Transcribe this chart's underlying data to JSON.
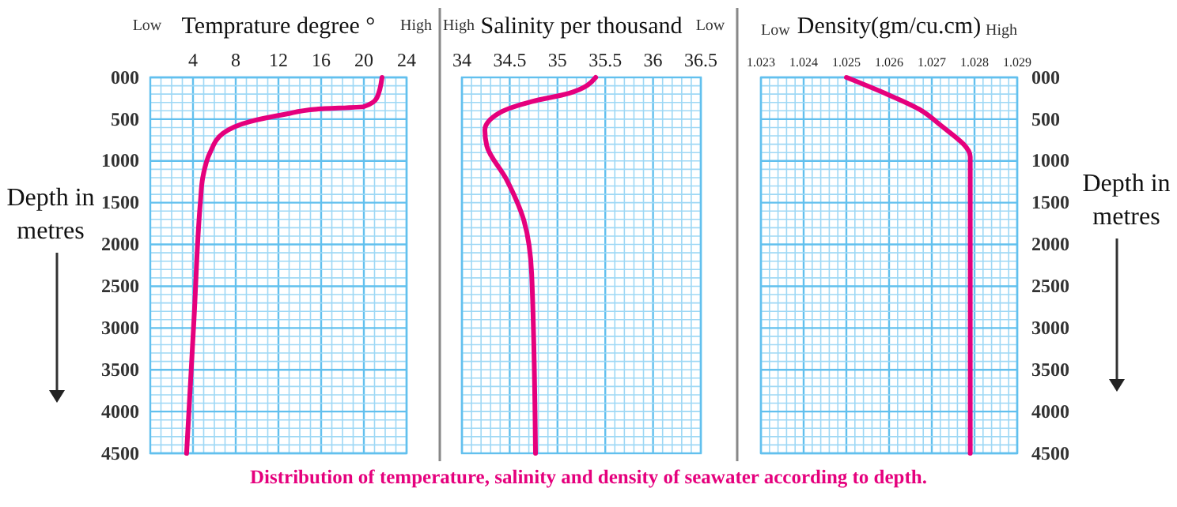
{
  "chart_data": [
    {
      "type": "line",
      "title": "Temprature degree °",
      "ylabel": "Depth in metres",
      "annotations": [
        "Low",
        "High"
      ],
      "xlim": [
        0,
        24
      ],
      "xticks": [
        {
          "value": 1,
          "label": null
        },
        {
          "value": 2,
          "label": null
        },
        {
          "value": 3,
          "label": null
        },
        4,
        {
          "value": 5,
          "label": null
        },
        {
          "value": 6,
          "label": null
        },
        {
          "value": 7,
          "label": null
        },
        8,
        {
          "value": 9,
          "label": null
        },
        {
          "value": 10,
          "label": null
        },
        {
          "value": 11,
          "label": null
        },
        12,
        {
          "value": 13,
          "label": null
        },
        {
          "value": 14,
          "label": null
        },
        {
          "value": 15,
          "label": null
        },
        16,
        {
          "value": 17,
          "label": null
        },
        {
          "value": 18,
          "label": null
        },
        {
          "value": 19,
          "label": null
        },
        20,
        {
          "value": 21,
          "label": null
        },
        {
          "value": 22,
          "label": null
        },
        {
          "value": 23,
          "label": null
        },
        24
      ],
      "ylim": [
        4500,
        0
      ],
      "yticks": [
        {
          "value": 0,
          "label": "000"
        },
        {
          "value": 100,
          "label": null
        },
        {
          "value": 200,
          "label": null
        },
        {
          "value": 300,
          "label": null
        },
        {
          "value": 400,
          "label": null
        },
        500,
        {
          "value": 600,
          "label": null
        },
        {
          "value": 700,
          "label": null
        },
        {
          "value": 800,
          "label": null
        },
        {
          "value": 900,
          "label": null
        },
        1000,
        {
          "value": 1100,
          "label": null
        },
        {
          "value": 1200,
          "label": null
        },
        {
          "value": 1300,
          "label": null
        },
        {
          "value": 1400,
          "label": null
        },
        1500,
        {
          "value": 1600,
          "label": null
        },
        {
          "value": 1700,
          "label": null
        },
        {
          "value": 1800,
          "label": null
        },
        {
          "value": 1900,
          "label": null
        },
        2000,
        {
          "value": 2100,
          "label": null
        },
        {
          "value": 2200,
          "label": null
        },
        {
          "value": 2300,
          "label": null
        },
        {
          "value": 2400,
          "label": null
        },
        2500,
        {
          "value": 2600,
          "label": null
        },
        {
          "value": 2700,
          "label": null
        },
        {
          "value": 2800,
          "label": null
        },
        {
          "value": 2900,
          "label": null
        },
        3000,
        {
          "value": 3100,
          "label": null
        },
        {
          "value": 3200,
          "label": null
        },
        {
          "value": 3300,
          "label": null
        },
        {
          "value": 3400,
          "label": null
        },
        3500,
        {
          "value": 3600,
          "label": null
        },
        {
          "value": 3700,
          "label": null
        },
        {
          "value": 3800,
          "label": null
        },
        {
          "value": 3900,
          "label": null
        },
        4000,
        {
          "value": 4100,
          "label": null
        },
        {
          "value": 4200,
          "label": null
        },
        {
          "value": 4300,
          "label": null
        },
        {
          "value": 4400,
          "label": null
        },
        4500
      ],
      "grid": true,
      "series": [
        {
          "color": "#e5007d",
          "x": [
            21.7,
            21.2,
            20,
            15.6,
            12.7,
            9.3,
            6.8,
            5.6,
            4.9,
            4.7,
            4.1,
            3.4
          ],
          "values": [
            0,
            250,
            350,
            380,
            440,
            530,
            670,
            900,
            1210,
            1480,
            2880,
            4500
          ]
        }
      ]
    },
    {
      "type": "line",
      "title": "Salinity per thousand",
      "annotations": [
        "High",
        "Low",
        "Distribution of temperature, salinity and density of seawater according to depth."
      ],
      "xlim": [
        34,
        36.5
      ],
      "xticks": [
        34,
        {
          "value": 34.1,
          "label": null
        },
        {
          "value": 34.2,
          "label": null
        },
        {
          "value": 34.3,
          "label": null
        },
        {
          "value": 34.4,
          "label": null
        },
        34.5,
        {
          "value": 34.6,
          "label": null
        },
        {
          "value": 34.7,
          "label": null
        },
        {
          "value": 34.8,
          "label": null
        },
        {
          "value": 34.9,
          "label": null
        },
        35,
        {
          "value": 35.1,
          "label": null
        },
        {
          "value": 35.2,
          "label": null
        },
        {
          "value": 35.3,
          "label": null
        },
        {
          "value": 35.4,
          "label": null
        },
        35.5,
        {
          "value": 35.6,
          "label": null
        },
        {
          "value": 35.7,
          "label": null
        },
        {
          "value": 35.8,
          "label": null
        },
        {
          "value": 35.9,
          "label": null
        },
        36,
        {
          "value": 36.1,
          "label": null
        },
        {
          "value": 36.2,
          "label": null
        },
        {
          "value": 36.3,
          "label": null
        },
        {
          "value": 36.4,
          "label": null
        },
        36.5
      ],
      "ylim": [
        4500,
        0
      ],
      "yticks": [
        {
          "value": 0,
          "label": null
        },
        {
          "value": 100,
          "label": null
        },
        {
          "value": 200,
          "label": null
        },
        {
          "value": 300,
          "label": null
        },
        {
          "value": 400,
          "label": null
        },
        {
          "value": 500,
          "label": null
        },
        {
          "value": 600,
          "label": null
        },
        {
          "value": 700,
          "label": null
        },
        {
          "value": 800,
          "label": null
        },
        {
          "value": 900,
          "label": null
        },
        {
          "value": 1000,
          "label": null
        },
        {
          "value": 1100,
          "label": null
        },
        {
          "value": 1200,
          "label": null
        },
        {
          "value": 1300,
          "label": null
        },
        {
          "value": 1400,
          "label": null
        },
        {
          "value": 1500,
          "label": null
        },
        {
          "value": 1600,
          "label": null
        },
        {
          "value": 1700,
          "label": null
        },
        {
          "value": 1800,
          "label": null
        },
        {
          "value": 1900,
          "label": null
        },
        {
          "value": 2000,
          "label": null
        },
        {
          "value": 2100,
          "label": null
        },
        {
          "value": 2200,
          "label": null
        },
        {
          "value": 2300,
          "label": null
        },
        {
          "value": 2400,
          "label": null
        },
        {
          "value": 2500,
          "label": null
        },
        {
          "value": 2600,
          "label": null
        },
        {
          "value": 2700,
          "label": null
        },
        {
          "value": 2800,
          "label": null
        },
        {
          "value": 2900,
          "label": null
        },
        {
          "value": 3000,
          "label": null
        },
        {
          "value": 3100,
          "label": null
        },
        {
          "value": 3200,
          "label": null
        },
        {
          "value": 3300,
          "label": null
        },
        {
          "value": 3400,
          "label": null
        },
        {
          "value": 3500,
          "label": null
        },
        {
          "value": 3600,
          "label": null
        },
        {
          "value": 3700,
          "label": null
        },
        {
          "value": 3800,
          "label": null
        },
        {
          "value": 3900,
          "label": null
        },
        {
          "value": 4000,
          "label": null
        },
        {
          "value": 4100,
          "label": null
        },
        {
          "value": 4200,
          "label": null
        },
        {
          "value": 4300,
          "label": null
        },
        {
          "value": 4400,
          "label": null
        },
        {
          "value": 4500,
          "label": null
        }
      ],
      "grid": true,
      "tick_labels": "x",
      "series": [
        {
          "color": "#e5007d",
          "x": [
            35.4,
            35.12,
            34.73,
            34.4,
            34.24,
            34.26,
            34.46,
            34.65,
            34.73,
            34.77
          ],
          "values": [
            0,
            190,
            290,
            420,
            630,
            820,
            1210,
            1720,
            2360,
            4500
          ]
        }
      ]
    },
    {
      "type": "line",
      "title": "Density(gm/cu.cm)",
      "ylabel": "Depth in metres",
      "annotations": [
        "Low",
        "High"
      ],
      "xlim": [
        1.023,
        1.029
      ],
      "xticks": [
        1.023,
        {
          "value": 1.0232,
          "label": null
        },
        {
          "value": 1.0234,
          "label": null
        },
        {
          "value": 1.0236,
          "label": null
        },
        {
          "value": 1.0238,
          "label": null
        },
        1.024,
        {
          "value": 1.0242,
          "label": null
        },
        {
          "value": 1.0244,
          "label": null
        },
        {
          "value": 1.0246,
          "label": null
        },
        {
          "value": 1.0248,
          "label": null
        },
        1.025,
        {
          "value": 1.0252,
          "label": null
        },
        {
          "value": 1.0254,
          "label": null
        },
        {
          "value": 1.0256,
          "label": null
        },
        {
          "value": 1.0258,
          "label": null
        },
        1.026,
        {
          "value": 1.0262,
          "label": null
        },
        {
          "value": 1.0264,
          "label": null
        },
        {
          "value": 1.0266,
          "label": null
        },
        {
          "value": 1.0268,
          "label": null
        },
        1.027,
        {
          "value": 1.0272,
          "label": null
        },
        {
          "value": 1.0274,
          "label": null
        },
        {
          "value": 1.0276,
          "label": null
        },
        {
          "value": 1.0278,
          "label": null
        },
        1.028,
        {
          "value": 1.0282,
          "label": null
        },
        {
          "value": 1.0284,
          "label": null
        },
        {
          "value": 1.0286,
          "label": null
        },
        {
          "value": 1.0288,
          "label": null
        },
        1.029
      ],
      "ylim": [
        4500,
        0
      ],
      "yticks": [
        {
          "value": 0,
          "label": "000"
        },
        {
          "value": 100,
          "label": null
        },
        {
          "value": 200,
          "label": null
        },
        {
          "value": 300,
          "label": null
        },
        {
          "value": 400,
          "label": null
        },
        500,
        {
          "value": 600,
          "label": null
        },
        {
          "value": 700,
          "label": null
        },
        {
          "value": 800,
          "label": null
        },
        {
          "value": 900,
          "label": null
        },
        1000,
        {
          "value": 1100,
          "label": null
        },
        {
          "value": 1200,
          "label": null
        },
        {
          "value": 1300,
          "label": null
        },
        {
          "value": 1400,
          "label": null
        },
        1500,
        {
          "value": 1600,
          "label": null
        },
        {
          "value": 1700,
          "label": null
        },
        {
          "value": 1800,
          "label": null
        },
        {
          "value": 1900,
          "label": null
        },
        2000,
        {
          "value": 2100,
          "label": null
        },
        {
          "value": 2200,
          "label": null
        },
        {
          "value": 2300,
          "label": null
        },
        {
          "value": 2400,
          "label": null
        },
        2500,
        {
          "value": 2600,
          "label": null
        },
        {
          "value": 2700,
          "label": null
        },
        {
          "value": 2800,
          "label": null
        },
        {
          "value": 2900,
          "label": null
        },
        3000,
        {
          "value": 3100,
          "label": null
        },
        {
          "value": 3200,
          "label": null
        },
        {
          "value": 3300,
          "label": null
        },
        {
          "value": 3400,
          "label": null
        },
        3500,
        {
          "value": 3600,
          "label": null
        },
        {
          "value": 3700,
          "label": null
        },
        {
          "value": 3800,
          "label": null
        },
        {
          "value": 3900,
          "label": null
        },
        4000,
        {
          "value": 4100,
          "label": null
        },
        {
          "value": 4200,
          "label": null
        },
        {
          "value": 4300,
          "label": null
        },
        {
          "value": 4400,
          "label": null
        },
        4500
      ],
      "grid": true,
      "series": [
        {
          "color": "#e5007d",
          "x": [
            1.025,
            1.0259,
            1.0267,
            1.0272,
            1.0279,
            1.0279
          ],
          "values": [
            0,
            190,
            380,
            570,
            950,
            4500
          ]
        }
      ]
    }
  ]
}
